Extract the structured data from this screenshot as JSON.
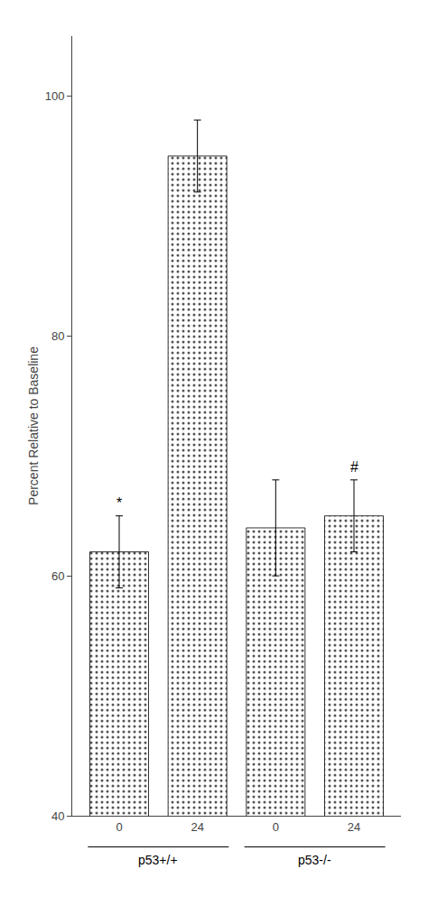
{
  "chart_data": {
    "type": "bar",
    "categories": [
      "0",
      "24",
      "0",
      "24"
    ],
    "groups": [
      "p53+/+",
      "p53+/+",
      "p53-/-",
      "p53-/-"
    ],
    "values": [
      62,
      95,
      64,
      65
    ],
    "errors": [
      3,
      3,
      4,
      3
    ],
    "color": "#d4d4d4",
    "ylabel": "Percent Relative to Baseline",
    "ylim": [
      40,
      105
    ],
    "yticks": [
      40,
      60,
      80,
      100
    ],
    "grid": false,
    "annotations": [
      {
        "text": "*",
        "index": 0
      },
      {
        "text": "#",
        "index": 3
      }
    ]
  }
}
